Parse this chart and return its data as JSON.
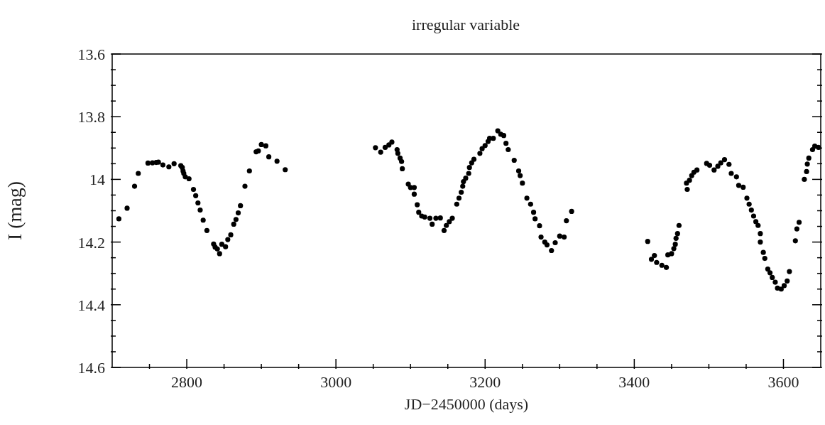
{
  "chart_data": {
    "type": "scatter",
    "title": "irregular variable",
    "xlabel": "JD−2450000 (days)",
    "ylabel": "I (mag)",
    "xlim": [
      2700,
      3650
    ],
    "xticks": [
      {
        "value": 2750,
        "label": null
      },
      2800,
      {
        "value": 2850,
        "label": null
      },
      {
        "value": 2900,
        "label": null
      },
      {
        "value": 2950,
        "label": null
      },
      3000,
      {
        "value": 3050,
        "label": null
      },
      {
        "value": 3100,
        "label": null
      },
      {
        "value": 3150,
        "label": null
      },
      3200,
      {
        "value": 3250,
        "label": null
      },
      {
        "value": 3300,
        "label": null
      },
      {
        "value": 3350,
        "label": null
      },
      3400,
      {
        "value": 3450,
        "label": null
      },
      {
        "value": 3500,
        "label": null
      },
      {
        "value": 3550,
        "label": null
      },
      3600
    ],
    "ylim": [
      14.6,
      13.6
    ],
    "yticks": [
      13.6,
      {
        "value": 13.65,
        "label": null
      },
      {
        "value": 13.7,
        "label": null
      },
      {
        "value": 13.75,
        "label": null
      },
      13.8,
      {
        "value": 13.85,
        "label": null
      },
      {
        "value": 13.9,
        "label": null
      },
      {
        "value": 13.95,
        "label": null
      },
      14,
      {
        "value": 14.05,
        "label": null
      },
      {
        "value": 14.1,
        "label": null
      },
      {
        "value": 14.15,
        "label": null
      },
      14.2,
      {
        "value": 14.25,
        "label": null
      },
      {
        "value": 14.3,
        "label": null
      },
      {
        "value": 14.35,
        "label": null
      },
      14.4,
      {
        "value": 14.45,
        "label": null
      },
      {
        "value": 14.5,
        "label": null
      },
      {
        "value": 14.55,
        "label": null
      },
      14.6
    ],
    "marker": "circle",
    "series": [
      {
        "color": "#000000",
        "x": [
          2709,
          2720,
          2730,
          2735,
          2748,
          2754,
          2759,
          2762,
          2768,
          2776,
          2783,
          2792,
          2794,
          2795,
          2796,
          2798,
          2803,
          2809,
          2812,
          2815,
          2818,
          2822,
          2827,
          2836,
          2838,
          2841,
          2844,
          2847,
          2852,
          2855,
          2859,
          2863,
          2866,
          2869,
          2872,
          2878,
          2884,
          2893,
          2896,
          2900,
          2906,
          2910,
          2921,
          2932,
          3053,
          3060,
          3066,
          3071,
          3075,
          3082,
          3083,
          3086,
          3088,
          3089,
          3097,
          3100,
          3105,
          3105,
          3109,
          3111,
          3115,
          3119,
          3126,
          3129,
          3134,
          3140,
          3145,
          3148,
          3152,
          3156,
          3162,
          3165,
          3168,
          3170,
          3171,
          3174,
          3178,
          3179,
          3182,
          3185,
          3193,
          3196,
          3200,
          3204,
          3206,
          3211,
          3217,
          3221,
          3225,
          3228,
          3231,
          3239,
          3245,
          3247,
          3250,
          3256,
          3261,
          3265,
          3267,
          3273,
          3275,
          3280,
          3283,
          3289,
          3294,
          3300,
          3306,
          3309,
          3316,
          3418,
          3423,
          3427,
          3430,
          3437,
          3443,
          3445,
          3450,
          3453,
          3455,
          3456,
          3458,
          3460,
          3470,
          3471,
          3474,
          3477,
          3480,
          3484,
          3497,
          3501,
          3507,
          3512,
          3516,
          3521,
          3527,
          3530,
          3537,
          3540,
          3546,
          3551,
          3554,
          3557,
          3560,
          3563,
          3566,
          3569,
          3569,
          3573,
          3575,
          3579,
          3582,
          3585,
          3589,
          3592,
          3597,
          3601,
          3605,
          3608,
          3616,
          3618,
          3621,
          3628,
          3631,
          3632,
          3634,
          3639,
          3642,
          3647
        ],
        "values": [
          14.126,
          14.092,
          14.022,
          13.981,
          13.948,
          13.947,
          13.946,
          13.945,
          13.954,
          13.96,
          13.95,
          13.956,
          13.962,
          13.973,
          13.981,
          13.992,
          13.998,
          14.032,
          14.052,
          14.075,
          14.098,
          14.13,
          14.163,
          14.206,
          14.216,
          14.222,
          14.237,
          14.207,
          14.215,
          14.192,
          14.177,
          14.143,
          14.128,
          14.107,
          14.084,
          14.022,
          13.973,
          13.912,
          13.909,
          13.889,
          13.893,
          13.928,
          13.942,
          13.969,
          13.899,
          13.913,
          13.898,
          13.89,
          13.881,
          13.905,
          13.917,
          13.932,
          13.943,
          13.966,
          14.015,
          14.026,
          14.026,
          14.047,
          14.081,
          14.105,
          14.117,
          14.12,
          14.124,
          14.143,
          14.124,
          14.123,
          14.163,
          14.147,
          14.135,
          14.124,
          14.079,
          14.06,
          14.041,
          14.022,
          14.007,
          13.996,
          13.981,
          13.962,
          13.947,
          13.936,
          13.917,
          13.902,
          13.892,
          13.879,
          13.869,
          13.869,
          13.845,
          13.856,
          13.86,
          13.885,
          13.905,
          13.939,
          13.973,
          13.988,
          14.012,
          14.06,
          14.079,
          14.105,
          14.126,
          14.148,
          14.184,
          14.2,
          14.209,
          14.227,
          14.202,
          14.181,
          14.184,
          14.132,
          14.102,
          14.198,
          14.255,
          14.243,
          14.265,
          14.274,
          14.281,
          14.241,
          14.237,
          14.221,
          14.207,
          14.188,
          14.173,
          14.147,
          14.012,
          14.032,
          14.003,
          13.988,
          13.977,
          13.97,
          13.949,
          13.955,
          13.97,
          13.958,
          13.947,
          13.937,
          13.952,
          13.981,
          13.992,
          14.019,
          14.025,
          14.06,
          14.079,
          14.098,
          14.117,
          14.135,
          14.147,
          14.173,
          14.2,
          14.233,
          14.252,
          14.286,
          14.298,
          14.313,
          14.328,
          14.347,
          14.35,
          14.339,
          14.324,
          14.294,
          14.196,
          14.158,
          14.137,
          14.0,
          13.975,
          13.951,
          13.932,
          13.905,
          13.894,
          13.898
        ]
      }
    ]
  }
}
